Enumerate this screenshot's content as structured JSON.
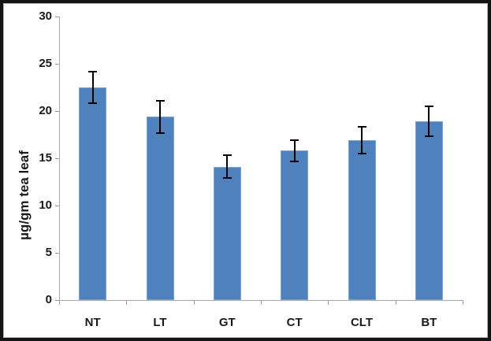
{
  "chart_data": {
    "type": "bar",
    "title": "",
    "xlabel": "",
    "ylabel": "µg/gm tea leaf",
    "categories": [
      "NT",
      "LT",
      "GT",
      "CT",
      "CLT",
      "BT"
    ],
    "values": [
      22.5,
      19.4,
      14.1,
      15.8,
      16.9,
      18.9
    ],
    "errors": [
      1.7,
      1.7,
      1.2,
      1.1,
      1.4,
      1.6
    ],
    "ylim": [
      0,
      30
    ],
    "yticks": [
      0,
      5,
      10,
      15,
      20,
      25,
      30
    ],
    "grid": false,
    "legend_position": "none",
    "bar_color": "#4f81bd",
    "bar_border_color": "#7da2d4",
    "error_bar_color": "#000000",
    "axis_color": "#a9a9a9"
  }
}
